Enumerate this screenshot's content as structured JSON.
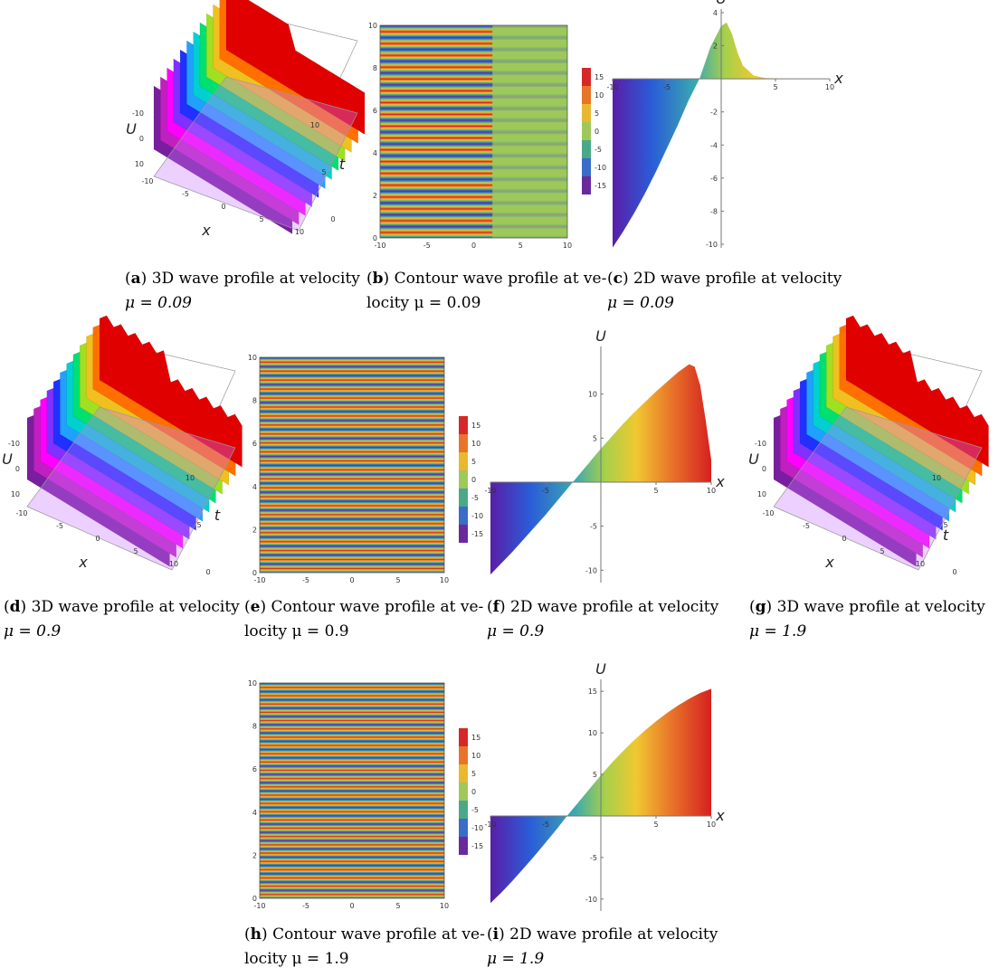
{
  "captions": {
    "a": {
      "letter": "a",
      "text1": "3D wave profile at velocity",
      "text2": "μ = 0.09"
    },
    "b": {
      "letter": "b",
      "text1": "Contour wave profile at ve-",
      "text2": "locity μ = 0.09"
    },
    "c": {
      "letter": "c",
      "text1": "2D wave profile at velocity",
      "text2": "μ = 0.09"
    },
    "d": {
      "letter": "d",
      "text1": "3D wave profile at velocity",
      "text2": "μ = 0.9"
    },
    "e": {
      "letter": "e",
      "text1": "Contour wave profile at ve-",
      "text2": "locity μ = 0.9"
    },
    "f": {
      "letter": "f",
      "text1": "2D wave profile at velocity",
      "text2": "μ = 0.9"
    },
    "g": {
      "letter": "g",
      "text1": "3D wave profile at velocity",
      "text2": "μ = 1.9"
    },
    "h": {
      "letter": "h",
      "text1": "Contour wave profile at ve-",
      "text2": "locity μ = 1.9"
    },
    "i": {
      "letter": "i",
      "text1": "2D wave profile at velocity",
      "text2": "μ = 1.9"
    }
  },
  "axis_labels": {
    "x": "x",
    "t": "t",
    "u": "U"
  },
  "chart_data": [
    {
      "id": "a",
      "type": "surface3d",
      "xlabel": "x",
      "ylabel": "t",
      "zlabel": "U",
      "x_ticks": [
        "-10",
        "-5",
        "0",
        "5",
        "10"
      ],
      "t_ticks": [
        "0",
        "5",
        "10"
      ],
      "u_ticks": [
        "-10",
        "0",
        "10"
      ],
      "colormap": [
        "#7a1ea0",
        "#ff00ff",
        "#2030ff",
        "#00c0ff",
        "#00e070",
        "#f0e020",
        "#ff7000",
        "#e00000"
      ]
    },
    {
      "id": "b",
      "type": "contour",
      "x_ticks": [
        "-10",
        "-5",
        "0",
        "5",
        "10"
      ],
      "y_ticks": [
        "0",
        "2",
        "4",
        "6",
        "8",
        "10"
      ],
      "legend_values": [
        "15",
        "10",
        "5",
        "0",
        "-5",
        "-10",
        "-15"
      ],
      "legend_colors": [
        "#d62828",
        "#e8742a",
        "#e8b830",
        "#9ec85a",
        "#4aa888",
        "#3a6cc8",
        "#6a2a9c"
      ],
      "stripes": 18
    },
    {
      "id": "c",
      "type": "area",
      "xlabel": "x",
      "ylabel": "U",
      "xlim": [
        -10,
        10
      ],
      "ylim": [
        -10,
        4
      ],
      "x_ticks": [
        "-10",
        "-5",
        "5",
        "10"
      ],
      "y_ticks": [
        "4",
        "2",
        "-2",
        "-4",
        "-6",
        "-8",
        "-10"
      ],
      "x": [
        -10,
        -9,
        -8,
        -7,
        -6,
        -5,
        -4,
        -3,
        -2,
        -1,
        0,
        0.5,
        1,
        1.5,
        2,
        3,
        4,
        5,
        6,
        7,
        8,
        9,
        10
      ],
      "y": [
        -10.2,
        -9.2,
        -8.1,
        -6.9,
        -5.6,
        -4.2,
        -2.8,
        -1.3,
        0.0,
        1.9,
        3.2,
        3.4,
        2.7,
        1.6,
        0.8,
        0.2,
        0.05,
        0.02,
        0,
        0,
        0,
        0,
        0
      ]
    },
    {
      "id": "d",
      "type": "surface3d",
      "xlabel": "x",
      "ylabel": "t",
      "zlabel": "U",
      "x_ticks": [
        "-10",
        "-5",
        "0",
        "5",
        "10"
      ],
      "t_ticks": [
        "0",
        "5",
        "10"
      ],
      "u_ticks": [
        "-10",
        "0",
        "10"
      ]
    },
    {
      "id": "e",
      "type": "contour",
      "x_ticks": [
        "-10",
        "-5",
        "0",
        "5",
        "10"
      ],
      "y_ticks": [
        "0",
        "2",
        "4",
        "6",
        "8",
        "10"
      ],
      "legend_values": [
        "15",
        "10",
        "5",
        "0",
        "-5",
        "-10",
        "-15"
      ],
      "legend_colors": [
        "#d62828",
        "#e8742a",
        "#e8b830",
        "#9ec85a",
        "#4aa888",
        "#3a6cc8",
        "#6a2a9c"
      ],
      "stripes": 24
    },
    {
      "id": "f",
      "type": "area",
      "xlabel": "x",
      "ylabel": "U",
      "xlim": [
        -10,
        10
      ],
      "ylim": [
        -11,
        15
      ],
      "x_ticks": [
        "-10",
        "-5",
        "5",
        "10"
      ],
      "y_ticks": [
        "10",
        "5",
        "-5",
        "-10"
      ],
      "x": [
        -10,
        -9,
        -8,
        -7,
        -6,
        -5,
        -4,
        -3,
        -2,
        -1,
        0,
        1,
        2,
        3,
        4,
        5,
        6,
        7,
        8,
        8.5,
        9,
        9.5,
        10
      ],
      "y": [
        -10.5,
        -9.2,
        -7.9,
        -6.5,
        -5.1,
        -3.7,
        -2.2,
        -0.7,
        0.8,
        2.3,
        3.8,
        5.2,
        6.6,
        7.9,
        9.1,
        10.3,
        11.4,
        12.5,
        13.4,
        13.1,
        11.0,
        7.0,
        2.5
      ]
    },
    {
      "id": "g",
      "type": "surface3d",
      "xlabel": "x",
      "ylabel": "t",
      "zlabel": "U",
      "x_ticks": [
        "-10",
        "-5",
        "0",
        "5",
        "10"
      ],
      "t_ticks": [
        "0",
        "5",
        "10"
      ],
      "u_ticks": [
        "-10",
        "0",
        "10"
      ]
    },
    {
      "id": "h",
      "type": "contour",
      "x_ticks": [
        "-10",
        "-5",
        "0",
        "5",
        "10"
      ],
      "y_ticks": [
        "0",
        "2",
        "4",
        "6",
        "8",
        "10"
      ],
      "legend_values": [
        "15",
        "10",
        "5",
        "0",
        "-5",
        "-10",
        "-15"
      ],
      "legend_colors": [
        "#d62828",
        "#e8742a",
        "#e8b830",
        "#9ec85a",
        "#4aa888",
        "#3a6cc8",
        "#6a2a9c"
      ],
      "stripes": 26
    },
    {
      "id": "i",
      "type": "area",
      "xlabel": "x",
      "ylabel": "U",
      "xlim": [
        -10,
        10
      ],
      "ylim": [
        -11,
        16
      ],
      "x_ticks": [
        "-10",
        "-5",
        "5",
        "10"
      ],
      "y_ticks": [
        "15",
        "10",
        "5",
        "-5",
        "-10"
      ],
      "x": [
        -10,
        -9,
        -8,
        -7,
        -6,
        -5,
        -4,
        -3,
        -2,
        -1,
        0,
        1,
        2,
        3,
        4,
        5,
        6,
        7,
        8,
        9,
        10
      ],
      "y": [
        -10.5,
        -9.2,
        -7.8,
        -6.3,
        -4.8,
        -3.2,
        -1.6,
        0.1,
        1.7,
        3.3,
        4.9,
        6.4,
        7.8,
        9.1,
        10.3,
        11.4,
        12.4,
        13.3,
        14.1,
        14.8,
        15.3
      ]
    }
  ]
}
